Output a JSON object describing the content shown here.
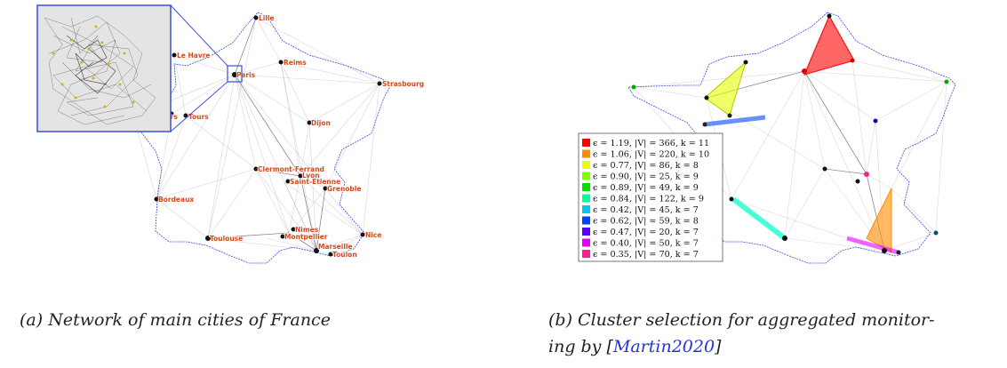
{
  "panel_a": {
    "caption_label": "(a)",
    "caption": "Network of main cities of France",
    "cities": [
      {
        "name": "Lille"
      },
      {
        "name": "Le Havre"
      },
      {
        "name": "Paris"
      },
      {
        "name": "Reims"
      },
      {
        "name": "Strasbourg"
      },
      {
        "name": "Angers"
      },
      {
        "name": "Tours"
      },
      {
        "name": "Dijon"
      },
      {
        "name": "Clermont-Ferrand"
      },
      {
        "name": "Lyon"
      },
      {
        "name": "Saint-Etienne"
      },
      {
        "name": "Grenoble"
      },
      {
        "name": "Bordeaux"
      },
      {
        "name": "Nimes"
      },
      {
        "name": "Montpellier"
      },
      {
        "name": "Toulouse"
      },
      {
        "name": "Marseille"
      },
      {
        "name": "Nice"
      },
      {
        "name": "Toulon"
      }
    ],
    "colors": {
      "label": "#d4481c",
      "coast": "#3b4fd6",
      "zoom_box": "#3b4fd6"
    }
  },
  "panel_b": {
    "caption_label": "(b)",
    "caption_line1": "Cluster selection for aggregated monitor-",
    "caption_line2_prefix": "ing by [",
    "citation": "Martin2020",
    "caption_line2_suffix": "]",
    "legend": [
      {
        "color": "#ff0000",
        "text": "ϵ = 1.19,  |V| = 366,  k = 11"
      },
      {
        "color": "#ff8c00",
        "text": "ϵ = 1.06,  |V| = 220,  k = 10"
      },
      {
        "color": "#e8ff00",
        "text": "ϵ = 0.77,  |V| = 86,  k = 8"
      },
      {
        "color": "#7dff00",
        "text": "ϵ = 0.90,  |V| = 25,  k = 9"
      },
      {
        "color": "#00e000",
        "text": "ϵ = 0.89,  |V| = 49,  k = 9"
      },
      {
        "color": "#00ff9a",
        "text": "ϵ = 0.84,  |V| = 122,  k = 9"
      },
      {
        "color": "#00c8e8",
        "text": "ϵ = 0.42,  |V| = 45,  k = 7"
      },
      {
        "color": "#0044ff",
        "text": "ϵ = 0.62,  |V| = 59,  k = 8"
      },
      {
        "color": "#5a00ff",
        "text": "ϵ = 0.47,  |V| = 20,  k = 7"
      },
      {
        "color": "#e800ff",
        "text": "ϵ = 0.40,  |V| = 50,  k = 7"
      },
      {
        "color": "#ff1f8e",
        "text": "ϵ = 0.35,  |V| = 70,  k = 7"
      }
    ]
  }
}
